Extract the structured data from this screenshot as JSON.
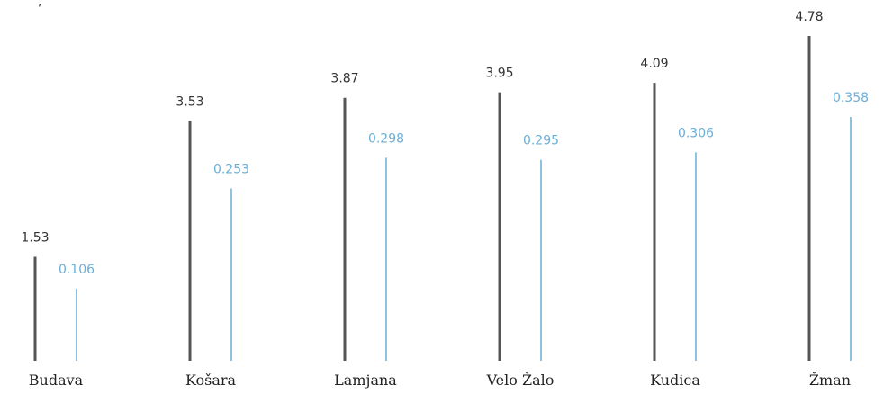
{
  "top_mark": ",",
  "chart_data": {
    "type": "bar",
    "categories": [
      "Budava",
      "Košara",
      "Lamjana",
      "Velo Žalo",
      "Kudica",
      "Žman"
    ],
    "series": [
      {
        "values": [
          1.53,
          3.53,
          3.87,
          3.95,
          4.09,
          4.78
        ],
        "color": "#555555"
      },
      {
        "values": [
          0.106,
          0.253,
          0.298,
          0.295,
          0.306,
          0.358
        ],
        "color": "#6baed6"
      }
    ],
    "labels": [
      [
        "1.53",
        "3.53",
        "3.87",
        "3.95",
        "4.09",
        "4.78"
      ],
      [
        "0.106",
        "0.253",
        "0.298",
        "0.295",
        "0.306",
        "0.358"
      ]
    ],
    "title": "",
    "xlabel": "",
    "ylabel": ""
  }
}
